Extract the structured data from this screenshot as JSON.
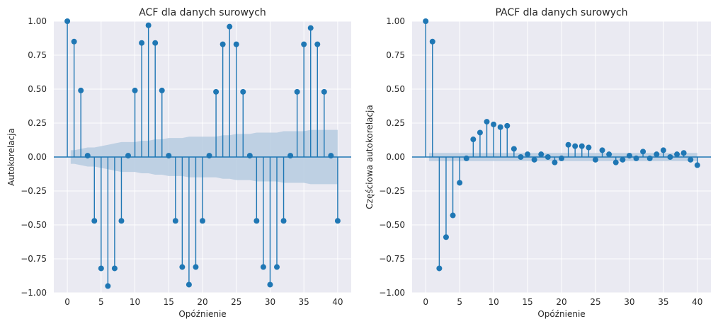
{
  "colors": {
    "background": "#eaeaf2",
    "grid": "#ffffff",
    "stem": "#1f77b4",
    "confidence_band": "#b6cbe0"
  },
  "chart_data": [
    {
      "type": "stem",
      "title": "ACF dla danych surowych",
      "xlabel": "Opóźnienie",
      "ylabel": "Autokorelacja",
      "xlim": [
        -2,
        42
      ],
      "ylim": [
        -1.0,
        1.0
      ],
      "xticks": [
        0,
        5,
        10,
        15,
        20,
        25,
        30,
        35,
        40
      ],
      "yticks": [
        -1.0,
        -0.75,
        -0.5,
        -0.25,
        0.0,
        0.25,
        0.5,
        0.75,
        1.0
      ],
      "ytick_labels": [
        "−1.00",
        "−0.75",
        "−0.50",
        "−0.25",
        "0.00",
        "0.25",
        "0.50",
        "0.75",
        "1.00"
      ],
      "grid": true,
      "x": [
        0,
        1,
        2,
        3,
        4,
        5,
        6,
        7,
        8,
        9,
        10,
        11,
        12,
        13,
        14,
        15,
        16,
        17,
        18,
        19,
        20,
        21,
        22,
        23,
        24,
        25,
        26,
        27,
        28,
        29,
        30,
        31,
        32,
        33,
        34,
        35,
        36,
        37,
        38,
        39,
        40
      ],
      "values": [
        1.0,
        0.85,
        0.49,
        0.01,
        -0.47,
        -0.82,
        -0.95,
        -0.82,
        -0.47,
        0.01,
        0.49,
        0.84,
        0.97,
        0.84,
        0.49,
        0.01,
        -0.47,
        -0.81,
        -0.94,
        -0.81,
        -0.47,
        0.01,
        0.48,
        0.83,
        0.96,
        0.83,
        0.48,
        0.01,
        -0.47,
        -0.81,
        -0.94,
        -0.81,
        -0.47,
        0.01,
        0.48,
        0.83,
        0.95,
        0.83,
        0.48,
        0.01,
        -0.47
      ],
      "confidence_band": [
        0.0,
        0.05,
        0.06,
        0.07,
        0.07,
        0.08,
        0.09,
        0.1,
        0.11,
        0.11,
        0.11,
        0.12,
        0.12,
        0.13,
        0.13,
        0.14,
        0.14,
        0.14,
        0.15,
        0.15,
        0.15,
        0.15,
        0.15,
        0.16,
        0.16,
        0.17,
        0.17,
        0.17,
        0.18,
        0.18,
        0.18,
        0.18,
        0.19,
        0.19,
        0.19,
        0.19,
        0.2,
        0.2,
        0.2,
        0.2,
        0.2
      ]
    },
    {
      "type": "stem",
      "title": "PACF dla danych surowych",
      "xlabel": "Opóźnienie",
      "ylabel": "Częściowa autokorelacja",
      "xlim": [
        -2,
        42
      ],
      "ylim": [
        -1.0,
        1.0
      ],
      "xticks": [
        0,
        5,
        10,
        15,
        20,
        25,
        30,
        35,
        40
      ],
      "yticks": [
        -1.0,
        -0.75,
        -0.5,
        -0.25,
        0.0,
        0.25,
        0.5,
        0.75,
        1.0
      ],
      "ytick_labels": [
        "−1.00",
        "−0.75",
        "−0.50",
        "−0.25",
        "0.00",
        "0.25",
        "0.50",
        "0.75",
        "1.00"
      ],
      "grid": true,
      "x": [
        0,
        1,
        2,
        3,
        4,
        5,
        6,
        7,
        8,
        9,
        10,
        11,
        12,
        13,
        14,
        15,
        16,
        17,
        18,
        19,
        20,
        21,
        22,
        23,
        24,
        25,
        26,
        27,
        28,
        29,
        30,
        31,
        32,
        33,
        34,
        35,
        36,
        37,
        38,
        39,
        40
      ],
      "values": [
        1.0,
        0.85,
        -0.82,
        -0.59,
        -0.43,
        -0.19,
        -0.01,
        0.13,
        0.18,
        0.26,
        0.24,
        0.22,
        0.23,
        0.06,
        0.0,
        0.02,
        -0.02,
        0.02,
        0.0,
        -0.04,
        -0.01,
        0.09,
        0.08,
        0.08,
        0.07,
        -0.02,
        0.05,
        0.02,
        -0.04,
        -0.02,
        0.01,
        -0.01,
        0.04,
        -0.01,
        0.02,
        0.05,
        0.0,
        0.02,
        0.03,
        -0.02,
        -0.06
      ],
      "confidence_band": [
        0.0,
        0.03,
        0.03,
        0.03,
        0.03,
        0.03,
        0.03,
        0.03,
        0.03,
        0.03,
        0.03,
        0.03,
        0.03,
        0.03,
        0.03,
        0.03,
        0.03,
        0.03,
        0.03,
        0.03,
        0.03,
        0.03,
        0.03,
        0.03,
        0.03,
        0.03,
        0.03,
        0.03,
        0.03,
        0.03,
        0.03,
        0.03,
        0.03,
        0.03,
        0.03,
        0.03,
        0.03,
        0.03,
        0.03,
        0.03,
        0.03
      ]
    }
  ]
}
